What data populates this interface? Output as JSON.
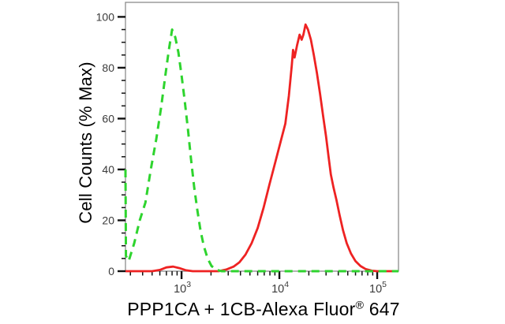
{
  "chart_data": {
    "type": "line",
    "subtype": "flow-cytometry-overlay-histogram",
    "title": "",
    "ylabel": "Cell Counts (% Max)",
    "xlabel_pre": "PPP1CA + 1CB-Alexa Fluor",
    "xlabel_sup": "®",
    "xlabel_post": " 647",
    "x_scale": "log",
    "y_scale": "linear",
    "x_range": [
      267,
      165000
    ],
    "y_range": [
      0,
      105.7
    ],
    "grid": false,
    "legend": false,
    "colors": {
      "green_series": "#2ed42e",
      "red_series": "#ee2222",
      "frame": "#8c8c8c",
      "ticks": "#111111",
      "tick_labels": "#3b3b3b",
      "text": "#000000",
      "background": "#ffffff"
    },
    "y_major_ticks": [
      {
        "value": 0,
        "label": "0"
      },
      {
        "value": 20,
        "label": "20"
      },
      {
        "value": 40,
        "label": "40"
      },
      {
        "value": 60,
        "label": "60"
      },
      {
        "value": 80,
        "label": "80"
      },
      {
        "value": 100,
        "label": "100"
      }
    ],
    "y_minor_ticks": [
      5,
      10,
      15,
      25,
      30,
      35,
      45,
      50,
      55,
      65,
      70,
      75,
      85,
      90,
      95
    ],
    "x_major_ticks": [
      {
        "value": 1000,
        "base": "10",
        "exp": "3"
      },
      {
        "value": 10000,
        "base": "10",
        "exp": "4"
      },
      {
        "value": 100000,
        "base": "10",
        "exp": "5"
      }
    ],
    "x_minor_ticks": [
      300,
      400,
      500,
      600,
      700,
      800,
      900,
      2000,
      3000,
      4000,
      5000,
      6000,
      7000,
      8000,
      9000,
      20000,
      30000,
      40000,
      50000,
      60000,
      70000,
      80000,
      90000
    ],
    "series": [
      {
        "name": "red-solid",
        "style": "solid",
        "color_key": "red_series",
        "stroke_width": 2.8,
        "points": [
          [
            267,
            0
          ],
          [
            500,
            0
          ],
          [
            600,
            0.5
          ],
          [
            700,
            1.5
          ],
          [
            820,
            1.8
          ],
          [
            950,
            1.2
          ],
          [
            1100,
            0.4
          ],
          [
            1300,
            0
          ],
          [
            2400,
            0
          ],
          [
            2900,
            0.7
          ],
          [
            3400,
            1.8
          ],
          [
            3900,
            3.5
          ],
          [
            4500,
            6.5
          ],
          [
            5200,
            11
          ],
          [
            6000,
            17
          ],
          [
            6900,
            25
          ],
          [
            7900,
            34
          ],
          [
            9100,
            43
          ],
          [
            10300,
            51
          ],
          [
            11500,
            58
          ],
          [
            12500,
            69
          ],
          [
            13400,
            81
          ],
          [
            13800,
            87
          ],
          [
            14300,
            84
          ],
          [
            15200,
            89
          ],
          [
            16100,
            93
          ],
          [
            16900,
            91
          ],
          [
            17600,
            93
          ],
          [
            18500,
            97
          ],
          [
            19600,
            95
          ],
          [
            21000,
            91
          ],
          [
            22500,
            85
          ],
          [
            24200,
            78
          ],
          [
            26000,
            70
          ],
          [
            28000,
            61
          ],
          [
            30000,
            53
          ],
          [
            31800,
            45
          ],
          [
            33600,
            38
          ],
          [
            35700,
            33
          ],
          [
            38300,
            28
          ],
          [
            41300,
            22
          ],
          [
            44800,
            16
          ],
          [
            48800,
            11
          ],
          [
            53800,
            7
          ],
          [
            59800,
            4
          ],
          [
            67500,
            2
          ],
          [
            76500,
            0.8
          ],
          [
            88000,
            0.2
          ],
          [
            100000,
            0
          ],
          [
            165000,
            0
          ]
        ]
      },
      {
        "name": "green-dashed",
        "style": "dashed",
        "color_key": "green_series",
        "stroke_width": 3,
        "dash": "10 7",
        "points": [
          [
            267,
            40
          ],
          [
            270,
            6
          ],
          [
            288,
            4
          ],
          [
            328,
            11
          ],
          [
            374,
            20
          ],
          [
            427,
            27
          ],
          [
            485,
            40
          ],
          [
            552,
            52
          ],
          [
            616,
            64
          ],
          [
            689,
            78
          ],
          [
            742,
            87
          ],
          [
            800,
            95
          ],
          [
            862,
            92
          ],
          [
            929,
            86
          ],
          [
            1000,
            77
          ],
          [
            1077,
            67
          ],
          [
            1160,
            56
          ],
          [
            1250,
            44
          ],
          [
            1347,
            33
          ],
          [
            1451,
            24
          ],
          [
            1563,
            16
          ],
          [
            1684,
            10
          ],
          [
            1847,
            5
          ],
          [
            2026,
            2
          ],
          [
            2286,
            0.5
          ],
          [
            2580,
            0
          ],
          [
            165000,
            0
          ]
        ]
      }
    ]
  }
}
